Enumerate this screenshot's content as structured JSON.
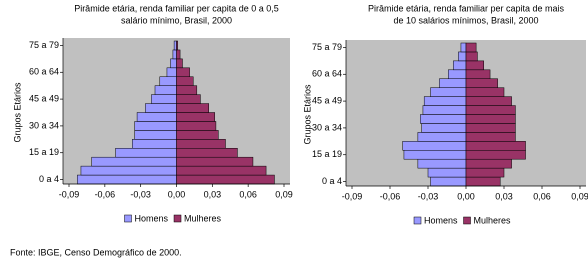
{
  "chart_data": [
    {
      "type": "bar",
      "orientation": "horizontal",
      "title": [
        "Pirâmide etária, renda familiar per capita de 0 a 0,5",
        "salário mínimo, Brasil, 2000"
      ],
      "y_label": "Grupos Etários",
      "categories": [
        "0 a 4",
        null,
        null,
        "15 a 19",
        null,
        null,
        "30 a 34",
        null,
        null,
        "45 a 49",
        null,
        null,
        "60 a 64",
        null,
        null,
        "75 a 79"
      ],
      "series": [
        {
          "name": "Homens",
          "color": "#9999ff",
          "values": [
            -0.083,
            -0.08,
            -0.071,
            -0.051,
            -0.037,
            -0.035,
            -0.035,
            -0.033,
            -0.026,
            -0.021,
            -0.018,
            -0.014,
            -0.008,
            -0.005,
            -0.003,
            -0.002
          ]
        },
        {
          "name": "Mulheres",
          "color": "#993366",
          "values": [
            0.082,
            0.075,
            0.064,
            0.051,
            0.041,
            0.035,
            0.033,
            0.032,
            0.027,
            0.02,
            0.017,
            0.014,
            0.011,
            0.005,
            0.003,
            0.001
          ]
        }
      ],
      "xlim": [
        -0.09,
        0.09
      ],
      "xticks": [
        {
          "value": -0.09,
          "label": "-0,09"
        },
        {
          "value": -0.06,
          "label": "-0,06"
        },
        {
          "value": -0.03,
          "label": "-0,03"
        },
        {
          "value": 0,
          "label": "0,00"
        },
        {
          "value": 0.03,
          "label": "0,03"
        },
        {
          "value": 0.06,
          "label": "0,06"
        },
        {
          "value": 0.09,
          "label": "0,09"
        }
      ]
    },
    {
      "type": "bar",
      "orientation": "horizontal",
      "title": [
        "Pirâmide etária, renda familiar per capita de mais",
        "de 10 salários mínimos, Brasil, 2000"
      ],
      "y_label": "Grupos Etários",
      "categories": [
        "0 a 4",
        null,
        null,
        "15 a 19",
        null,
        null,
        "30 a 34",
        null,
        null,
        "45 a 49",
        null,
        null,
        "60 a 64",
        null,
        null,
        "75 a 79"
      ],
      "series": [
        {
          "name": "Homens",
          "color": "#9999ff",
          "values": [
            -0.028,
            -0.03,
            -0.038,
            -0.049,
            -0.05,
            -0.038,
            -0.035,
            -0.036,
            -0.034,
            -0.033,
            -0.028,
            -0.021,
            -0.014,
            -0.01,
            -0.006,
            -0.004
          ]
        },
        {
          "name": "Mulheres",
          "color": "#993366",
          "values": [
            0.027,
            0.03,
            0.036,
            0.047,
            0.047,
            0.039,
            0.039,
            0.039,
            0.039,
            0.036,
            0.03,
            0.025,
            0.019,
            0.014,
            0.009,
            0.008
          ]
        }
      ],
      "xlim": [
        -0.09,
        0.09
      ],
      "xticks": [
        {
          "value": -0.09,
          "label": "-0,09"
        },
        {
          "value": -0.06,
          "label": "-0,06"
        },
        {
          "value": -0.03,
          "label": "-0,03"
        },
        {
          "value": 0,
          "label": "0,00"
        },
        {
          "value": 0.03,
          "label": "0,03"
        },
        {
          "value": 0.06,
          "label": "0,06"
        },
        {
          "value": 0.09,
          "label": "0,09"
        }
      ]
    }
  ],
  "source": "Fonte: IBGE, Censo Demográfico de 2000."
}
